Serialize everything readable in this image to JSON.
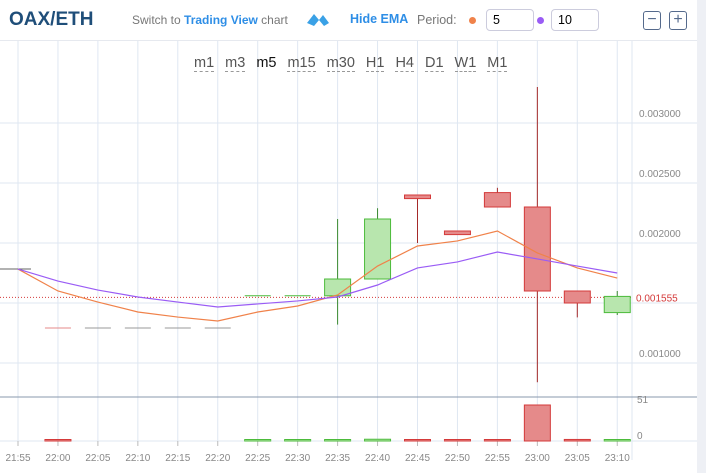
{
  "header": {
    "pair": "OAX/ETH",
    "switch_prefix": "Switch to ",
    "switch_link": "Trading View",
    "switch_suffix": " chart",
    "hide_ema": "Hide EMA",
    "period_label": "Period:",
    "ema_fast": "5",
    "ema_slow": "10",
    "zoom_out": "−",
    "zoom_in": "+"
  },
  "timeframes": [
    {
      "label": "m1"
    },
    {
      "label": "m3"
    },
    {
      "label": "m5",
      "active": true
    },
    {
      "label": "m15"
    },
    {
      "label": "m30"
    },
    {
      "label": "H1"
    },
    {
      "label": "H4"
    },
    {
      "label": "D1"
    },
    {
      "label": "W1"
    },
    {
      "label": "M1"
    }
  ],
  "colors": {
    "up": "#4cbb3b",
    "up_fill": "#b8e6ae",
    "down": "#d43a3a",
    "down_fill": "#e58a8a",
    "flat": "#999999",
    "ema_fast": "#f0824a",
    "ema_slow": "#9a5cf5",
    "grid": "#dfe7f2"
  },
  "chart_data": {
    "type": "candlestick",
    "x": [
      "21:55",
      "22:00",
      "22:05",
      "22:10",
      "22:15",
      "22:20",
      "22:25",
      "22:30",
      "22:35",
      "22:40",
      "22:45",
      "22:50",
      "22:55",
      "23:00",
      "23:05",
      "23:10"
    ],
    "ohlc": [
      [
        0.001783,
        0.001783,
        0.001783,
        0.001783
      ],
      [
        0.001292,
        0.001292,
        0.001292,
        0.001292
      ],
      [
        0.001292,
        0.001292,
        0.001292,
        0.001292
      ],
      [
        0.001292,
        0.001292,
        0.001292,
        0.001292
      ],
      [
        0.001292,
        0.001292,
        0.001292,
        0.001292
      ],
      [
        0.001292,
        0.001292,
        0.001292,
        0.001292
      ],
      [
        0.00156,
        0.00156,
        0.00156,
        0.00156
      ],
      [
        0.00156,
        0.00156,
        0.00156,
        0.00156
      ],
      [
        0.00156,
        0.0022,
        0.00132,
        0.0017
      ],
      [
        0.0017,
        0.00229,
        0.0017,
        0.0022
      ],
      [
        0.0024,
        0.0024,
        0.002,
        0.00237
      ],
      [
        0.0021,
        0.0021,
        0.00207,
        0.00207
      ],
      [
        0.00242,
        0.00246,
        0.0023,
        0.0023
      ],
      [
        0.0023,
        0.0033,
        0.00084,
        0.0016
      ],
      [
        0.0016,
        0.0016,
        0.00138,
        0.0015
      ],
      [
        0.00142,
        0.0016,
        0.0014,
        0.001555
      ]
    ],
    "candle_dir": [
      "flat",
      "down",
      "flat",
      "flat",
      "flat",
      "flat",
      "up",
      "up",
      "up",
      "up",
      "down",
      "down",
      "down",
      "down",
      "down",
      "up"
    ],
    "volume": [
      0,
      0.3,
      0,
      0,
      0,
      0,
      0.3,
      0.3,
      0.8,
      2.5,
      0.6,
      0.6,
      1.5,
      51,
      2.2,
      0.8
    ],
    "ema_fast": [
      0.001783,
      0.0016,
      0.001508,
      0.001425,
      0.001383,
      0.00135,
      0.001425,
      0.001475,
      0.001567,
      0.001808,
      0.001975,
      0.002017,
      0.0021,
      0.001917,
      0.001792,
      0.001708
    ],
    "ema_slow": [
      0.001783,
      0.001683,
      0.001608,
      0.00155,
      0.001508,
      0.001467,
      0.001492,
      0.001517,
      0.00155,
      0.00165,
      0.001792,
      0.001842,
      0.001925,
      0.001867,
      0.001808,
      0.00175
    ],
    "y_ticks": [
      "0.003000",
      "0.002500",
      "0.002000",
      "0.001000"
    ],
    "y_tick_values": [
      0.003,
      0.0025,
      0.002,
      0.001
    ],
    "last_price": "0.001555",
    "volume_ticks": [
      "51",
      "0"
    ],
    "volume_tick_values": [
      51,
      0
    ],
    "ylim": [
      0.00075,
      0.0034
    ]
  }
}
